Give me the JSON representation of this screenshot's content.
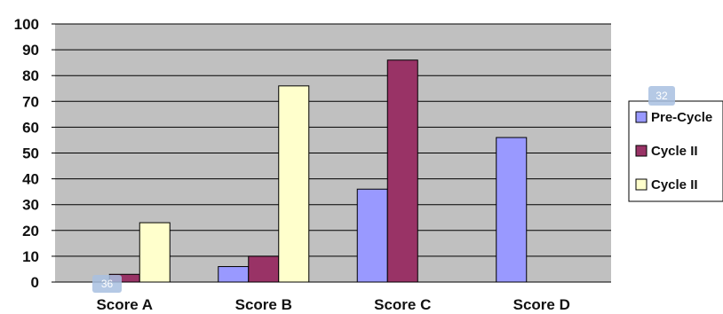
{
  "chart_data": {
    "type": "bar",
    "categories": [
      "Score A",
      "Score B",
      "Score C",
      "Score D"
    ],
    "series": [
      {
        "name": "Pre-Cycle",
        "values": [
          0,
          6,
          36,
          56
        ],
        "color": "#9999ff"
      },
      {
        "name": "Cycle II",
        "values": [
          3,
          10,
          86,
          0
        ],
        "color": "#993366"
      },
      {
        "name": "Cycle II",
        "values": [
          23,
          76,
          0,
          0
        ],
        "color": "#ffffcc"
      }
    ],
    "yticks": [
      0,
      10,
      20,
      30,
      40,
      50,
      60,
      70,
      80,
      90,
      100
    ],
    "ylim": [
      0,
      100
    ],
    "grid": true,
    "plot_background": "#c0c0c0",
    "legend_position": "right",
    "title": "",
    "xlabel": "",
    "ylabel": ""
  },
  "badges": [
    {
      "text": "36",
      "color": "#a8bfe0"
    },
    {
      "text": "32",
      "color": "#a8bfe0"
    }
  ]
}
